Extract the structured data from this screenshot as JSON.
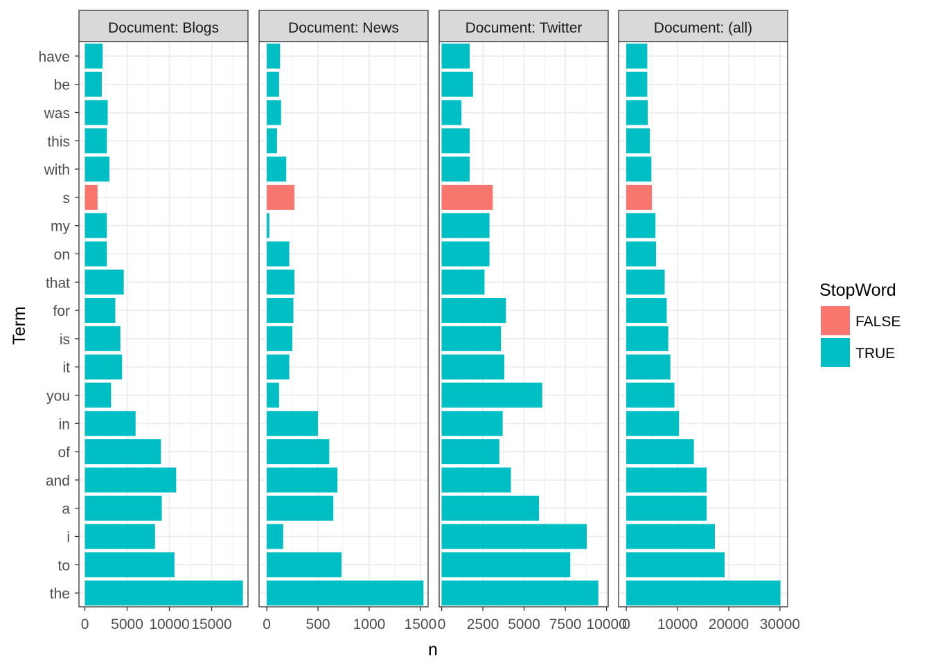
{
  "chart_data": {
    "type": "bar",
    "orientation": "horizontal",
    "facet_label": "Document",
    "xlabel": "n",
    "ylabel": "Term",
    "legend": {
      "title": "StopWord",
      "position": "right",
      "entries": [
        {
          "label": "FALSE",
          "color": "#F8766D"
        },
        {
          "label": "TRUE",
          "color": "#00BFC4"
        }
      ]
    },
    "grid": true,
    "terms": [
      "have",
      "be",
      "was",
      "this",
      "with",
      "s",
      "my",
      "on",
      "that",
      "for",
      "is",
      "it",
      "you",
      "in",
      "of",
      "and",
      "a",
      "i",
      "to",
      "the"
    ],
    "stopword": [
      true,
      true,
      true,
      true,
      true,
      false,
      true,
      true,
      true,
      true,
      true,
      true,
      true,
      true,
      true,
      true,
      true,
      true,
      true,
      true
    ],
    "panels": [
      {
        "strip": "Document: Blogs",
        "xlim": [
          -700,
          19300
        ],
        "ticks": [
          0,
          5000,
          10000,
          15000
        ],
        "tick_labels": [
          "0",
          "5000",
          "10000",
          "15000"
        ],
        "values": [
          2100,
          2000,
          2700,
          2600,
          2900,
          1500,
          2600,
          2600,
          4600,
          3600,
          4200,
          4400,
          3100,
          6000,
          9000,
          10800,
          9100,
          8300,
          10600,
          18700
        ]
      },
      {
        "strip": "Document: News",
        "xlim": [
          -75,
          1575
        ],
        "ticks": [
          0,
          500,
          1000,
          1500
        ],
        "tick_labels": [
          "0",
          "500",
          "1000",
          "1500"
        ],
        "values": [
          130,
          120,
          140,
          100,
          190,
          270,
          25,
          220,
          270,
          260,
          250,
          220,
          120,
          500,
          610,
          690,
          650,
          160,
          730,
          1530
        ]
      },
      {
        "strip": "Document: Twitter",
        "xlim": [
          -150,
          10100
        ],
        "ticks": [
          0,
          2500,
          5000,
          7500,
          10000
        ],
        "tick_labels": [
          "0",
          "2500",
          "5000",
          "7500",
          "10000"
        ],
        "values": [
          1700,
          1900,
          1200,
          1700,
          1700,
          3100,
          2900,
          2900,
          2600,
          3900,
          3600,
          3800,
          6100,
          3700,
          3500,
          4200,
          5900,
          8800,
          7800,
          9500
        ]
      },
      {
        "strip": "Document: (all)",
        "xlim": [
          -1500,
          31500
        ],
        "ticks": [
          0,
          10000,
          20000,
          30000
        ],
        "tick_labels": [
          "0",
          "10000",
          "20000",
          "30000"
        ],
        "values": [
          4100,
          4100,
          4200,
          4600,
          4900,
          5000,
          5700,
          5800,
          7500,
          7900,
          8200,
          8600,
          9400,
          10300,
          13200,
          15700,
          15700,
          17300,
          19200,
          30100
        ]
      }
    ]
  }
}
